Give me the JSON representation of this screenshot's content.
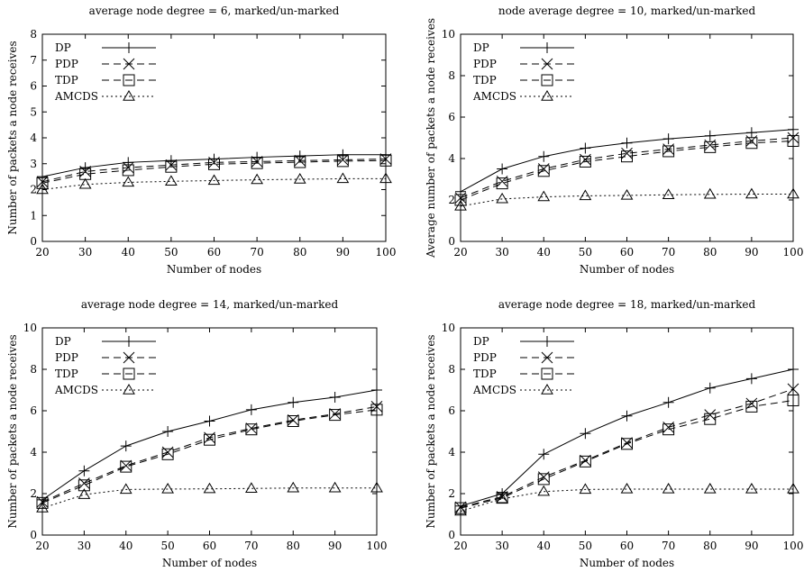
{
  "chart_data": [
    {
      "type": "line",
      "title": "average node degree = 6, marked/un-marked",
      "xlabel": "Number of nodes",
      "ylabel": "Number of packets a node receives",
      "xlim": [
        20,
        100
      ],
      "ylim": [
        0,
        8
      ],
      "xticks": [
        20,
        30,
        40,
        50,
        60,
        70,
        80,
        90,
        100
      ],
      "yticks": [
        0,
        1,
        2,
        3,
        4,
        5,
        6,
        7,
        8
      ],
      "grid": false,
      "legend_position": "top-left",
      "series": [
        {
          "name": "DP",
          "style": "solid",
          "marker": "plus",
          "x": [
            20,
            30,
            40,
            50,
            60,
            70,
            80,
            90,
            100
          ],
          "values": [
            2.5,
            2.85,
            3.05,
            3.12,
            3.18,
            3.25,
            3.3,
            3.35,
            3.35
          ]
        },
        {
          "name": "PDP",
          "style": "dashed",
          "marker": "cross",
          "x": [
            20,
            30,
            40,
            50,
            60,
            70,
            80,
            90,
            100
          ],
          "values": [
            2.3,
            2.7,
            2.85,
            2.95,
            3.05,
            3.08,
            3.12,
            3.15,
            3.18
          ]
        },
        {
          "name": "TDP",
          "style": "dashed",
          "marker": "square",
          "x": [
            20,
            30,
            40,
            50,
            60,
            70,
            80,
            90,
            100
          ],
          "values": [
            2.25,
            2.6,
            2.75,
            2.88,
            2.98,
            3.02,
            3.06,
            3.1,
            3.12
          ]
        },
        {
          "name": "AMCDS",
          "style": "dotted",
          "marker": "triangle",
          "x": [
            20,
            30,
            40,
            50,
            60,
            70,
            80,
            90,
            100
          ],
          "values": [
            2.0,
            2.2,
            2.28,
            2.32,
            2.35,
            2.38,
            2.4,
            2.42,
            2.42
          ]
        }
      ]
    },
    {
      "type": "line",
      "title": "node average degree = 10, marked/un-marked",
      "xlabel": "Number of nodes",
      "ylabel": "Average number of packets a node receives",
      "xlim": [
        20,
        100
      ],
      "ylim": [
        0,
        10
      ],
      "xticks": [
        20,
        30,
        40,
        50,
        60,
        70,
        80,
        90,
        100
      ],
      "yticks": [
        0,
        2,
        4,
        6,
        8,
        10
      ],
      "grid": false,
      "legend_position": "top-left",
      "series": [
        {
          "name": "DP",
          "style": "solid",
          "marker": "plus",
          "x": [
            20,
            30,
            40,
            50,
            60,
            70,
            80,
            90,
            100
          ],
          "values": [
            2.4,
            3.5,
            4.1,
            4.5,
            4.75,
            4.95,
            5.1,
            5.25,
            5.4
          ]
        },
        {
          "name": "PDP",
          "style": "dashed",
          "marker": "cross",
          "x": [
            20,
            30,
            40,
            50,
            60,
            70,
            80,
            90,
            100
          ],
          "values": [
            2.1,
            2.9,
            3.5,
            3.95,
            4.25,
            4.45,
            4.65,
            4.85,
            5.0
          ]
        },
        {
          "name": "TDP",
          "style": "dashed",
          "marker": "square",
          "x": [
            20,
            30,
            40,
            50,
            60,
            70,
            80,
            90,
            100
          ],
          "values": [
            2.0,
            2.8,
            3.4,
            3.85,
            4.1,
            4.35,
            4.55,
            4.75,
            4.85
          ]
        },
        {
          "name": "AMCDS",
          "style": "dotted",
          "marker": "triangle",
          "x": [
            20,
            30,
            40,
            50,
            60,
            70,
            80,
            90,
            100
          ],
          "values": [
            1.7,
            2.05,
            2.15,
            2.2,
            2.22,
            2.25,
            2.27,
            2.28,
            2.28
          ]
        }
      ]
    },
    {
      "type": "line",
      "title": "average node degree = 14, marked/un-marked",
      "xlabel": "Number of nodes",
      "ylabel": "Number of packets a node receives",
      "xlim": [
        20,
        100
      ],
      "ylim": [
        0,
        10
      ],
      "xticks": [
        20,
        30,
        40,
        50,
        60,
        70,
        80,
        90,
        100
      ],
      "yticks": [
        0,
        2,
        4,
        6,
        8,
        10
      ],
      "grid": false,
      "legend_position": "top-left",
      "series": [
        {
          "name": "DP",
          "style": "solid",
          "marker": "plus",
          "x": [
            20,
            30,
            40,
            50,
            60,
            70,
            80,
            90,
            100
          ],
          "values": [
            1.7,
            3.1,
            4.3,
            5.0,
            5.5,
            6.05,
            6.4,
            6.65,
            7.0
          ]
        },
        {
          "name": "PDP",
          "style": "dashed",
          "marker": "cross",
          "x": [
            20,
            30,
            40,
            50,
            60,
            70,
            80,
            90,
            100
          ],
          "values": [
            1.6,
            2.5,
            3.35,
            4.0,
            4.7,
            5.15,
            5.55,
            5.85,
            6.2
          ]
        },
        {
          "name": "TDP",
          "style": "dashed",
          "marker": "square",
          "x": [
            20,
            30,
            40,
            50,
            60,
            70,
            80,
            90,
            100
          ],
          "values": [
            1.55,
            2.4,
            3.3,
            3.9,
            4.6,
            5.1,
            5.5,
            5.8,
            6.05
          ]
        },
        {
          "name": "AMCDS",
          "style": "dotted",
          "marker": "triangle",
          "x": [
            20,
            30,
            40,
            50,
            60,
            70,
            80,
            90,
            100
          ],
          "values": [
            1.3,
            1.95,
            2.2,
            2.22,
            2.23,
            2.25,
            2.27,
            2.27,
            2.27
          ]
        }
      ]
    },
    {
      "type": "line",
      "title": "average node degree = 18, marked/un-marked",
      "xlabel": "Number of nodes",
      "ylabel": "Number of packets a node receives",
      "xlim": [
        20,
        100
      ],
      "ylim": [
        0,
        10
      ],
      "xticks": [
        20,
        30,
        40,
        50,
        60,
        70,
        80,
        90,
        100
      ],
      "yticks": [
        0,
        2,
        4,
        6,
        8,
        10
      ],
      "grid": false,
      "legend_position": "top-left",
      "series": [
        {
          "name": "DP",
          "style": "solid",
          "marker": "plus",
          "x": [
            20,
            30,
            40,
            50,
            60,
            70,
            80,
            90,
            100
          ],
          "values": [
            1.4,
            2.0,
            3.9,
            4.9,
            5.75,
            6.4,
            7.1,
            7.55,
            8.0
          ]
        },
        {
          "name": "PDP",
          "style": "dashed",
          "marker": "cross",
          "x": [
            20,
            30,
            40,
            50,
            60,
            70,
            80,
            90,
            100
          ],
          "values": [
            1.35,
            1.85,
            2.8,
            3.6,
            4.45,
            5.2,
            5.8,
            6.35,
            7.05
          ]
        },
        {
          "name": "TDP",
          "style": "dashed",
          "marker": "square",
          "x": [
            20,
            30,
            40,
            50,
            60,
            70,
            80,
            90,
            100
          ],
          "values": [
            1.3,
            1.8,
            2.7,
            3.55,
            4.4,
            5.1,
            5.6,
            6.2,
            6.5
          ]
        },
        {
          "name": "AMCDS",
          "style": "dotted",
          "marker": "triangle",
          "x": [
            20,
            30,
            40,
            50,
            60,
            70,
            80,
            90,
            100
          ],
          "values": [
            1.15,
            1.75,
            2.1,
            2.2,
            2.22,
            2.22,
            2.22,
            2.22,
            2.22
          ]
        }
      ]
    }
  ]
}
